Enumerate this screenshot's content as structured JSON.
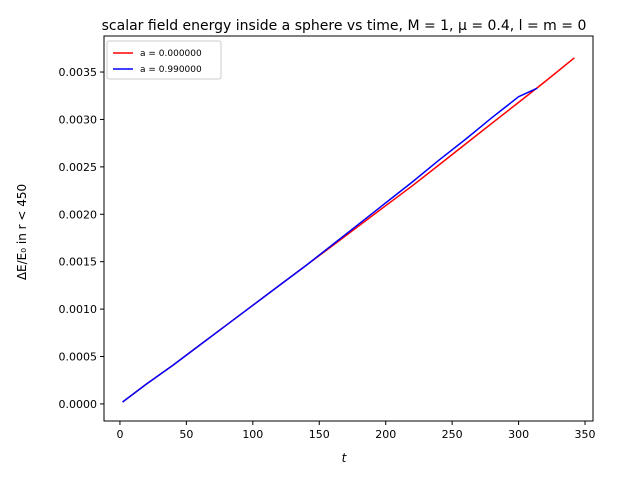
{
  "chart_data": {
    "type": "line",
    "title": "scalar field energy inside a sphere vs time, M = 1, μ = 0.4, l = m = 0",
    "xlabel": "t",
    "ylabel": "ΔE/E₀ in r < 450",
    "xlim": [
      -12,
      356
    ],
    "ylim": [
      -0.00018,
      0.00388
    ],
    "xticks": [
      0,
      50,
      100,
      150,
      200,
      250,
      300,
      350
    ],
    "xtick_labels": [
      "0",
      "50",
      "100",
      "150",
      "200",
      "250",
      "300",
      "350"
    ],
    "yticks": [
      0.0,
      0.0005,
      0.001,
      0.0015,
      0.002,
      0.0025,
      0.003,
      0.0035
    ],
    "ytick_labels": [
      "0.0000",
      "0.0005",
      "0.0010",
      "0.0015",
      "0.0020",
      "0.0025",
      "0.0030",
      "0.0035"
    ],
    "grid": false,
    "legend_position": "top-left",
    "series": [
      {
        "name": "a = 0.000000",
        "color": "#ff0000",
        "x": [
          2,
          20,
          40,
          60,
          80,
          100,
          120,
          140,
          160,
          180,
          200,
          220,
          240,
          260,
          280,
          300,
          320,
          342
        ],
        "y": [
          2e-05,
          0.00021,
          0.00041,
          0.00062,
          0.00083,
          0.00104,
          0.00125,
          0.00146,
          0.00167,
          0.00188,
          0.00209,
          0.0023,
          0.00252,
          0.00274,
          0.00296,
          0.00318,
          0.0034,
          0.00365
        ]
      },
      {
        "name": "a = 0.990000",
        "color": "#0000ff",
        "x": [
          2,
          20,
          40,
          60,
          80,
          100,
          120,
          140,
          160,
          180,
          200,
          220,
          240,
          260,
          280,
          300,
          314
        ],
        "y": [
          2e-05,
          0.00021,
          0.00041,
          0.00062,
          0.00083,
          0.00104,
          0.00125,
          0.00146,
          0.00168,
          0.0019,
          0.00212,
          0.00234,
          0.00257,
          0.00279,
          0.00302,
          0.00324,
          0.00333
        ]
      }
    ]
  }
}
